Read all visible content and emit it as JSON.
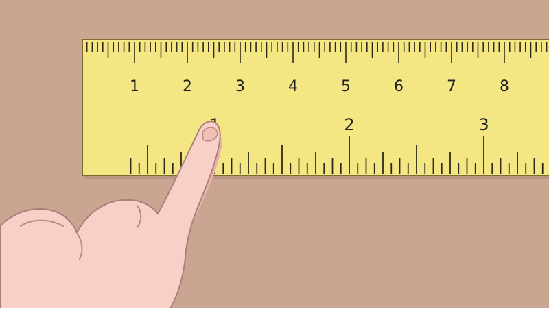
{
  "colors": {
    "background": "#c9a592",
    "ruler_fill": "#f4e683",
    "ruler_edge": "#7b6b2e",
    "tick": "#2d2a1a",
    "hand": "#f8d0c8",
    "hand_shadow": "#e9b3ab",
    "table_shadow": "#b99482"
  },
  "ruler": {
    "top_scale": {
      "unit": "cm",
      "labels": [
        "1",
        "2",
        "3",
        "4",
        "5",
        "6",
        "7",
        "8"
      ],
      "spacing_major": 1,
      "divisions_per_unit": 10
    },
    "bottom_scale": {
      "unit": "in",
      "labels": [
        "1",
        "2",
        "3"
      ],
      "divisions_per_unit": 16
    }
  },
  "scene": {
    "subject": "finger pointing at ruler",
    "hand_icon": "hand-pointing-icon"
  }
}
